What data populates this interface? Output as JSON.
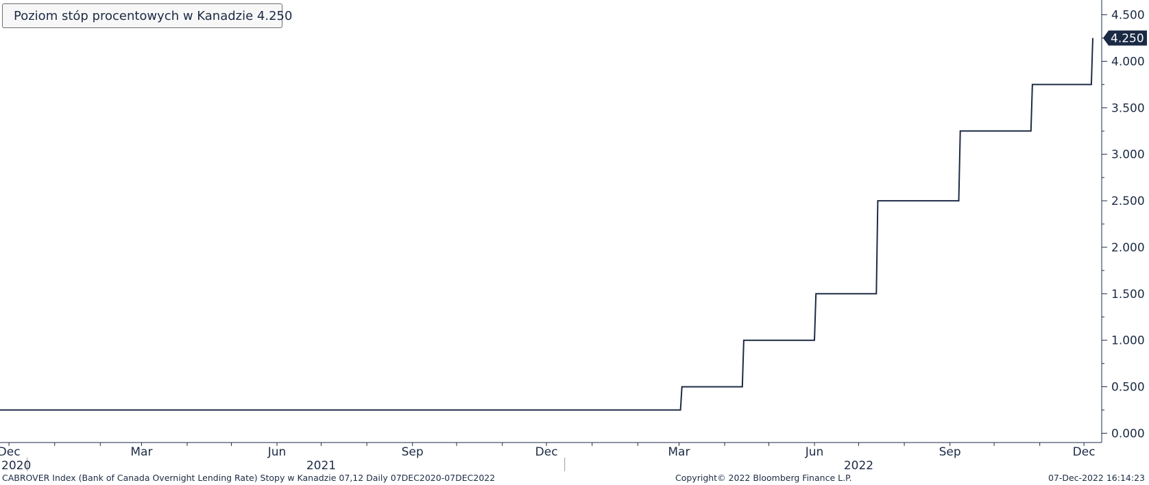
{
  "chart_data": {
    "type": "line",
    "line_shape": "step",
    "series": [
      {
        "name": "Poziom stóp procentowych w Kanadzie",
        "last_value": "4.250",
        "color": "#1b2a44",
        "points": [
          {
            "x": "2020-12-07",
            "y": 0.25
          },
          {
            "x": "2022-03-02",
            "y": 0.25
          },
          {
            "x": "2022-03-03",
            "y": 0.5
          },
          {
            "x": "2022-04-13",
            "y": 0.5
          },
          {
            "x": "2022-04-14",
            "y": 1.0
          },
          {
            "x": "2022-06-01",
            "y": 1.0
          },
          {
            "x": "2022-06-02",
            "y": 1.5
          },
          {
            "x": "2022-07-13",
            "y": 1.5
          },
          {
            "x": "2022-07-14",
            "y": 2.5
          },
          {
            "x": "2022-09-07",
            "y": 2.5
          },
          {
            "x": "2022-09-08",
            "y": 3.25
          },
          {
            "x": "2022-10-26",
            "y": 3.25
          },
          {
            "x": "2022-10-27",
            "y": 3.75
          },
          {
            "x": "2022-12-06",
            "y": 3.75
          },
          {
            "x": "2022-12-07",
            "y": 4.25
          }
        ]
      }
    ],
    "xlim": [
      "2020-12-07",
      "2022-12-07"
    ],
    "ylim": [
      -0.1,
      4.6
    ],
    "y_ticks": [
      "0.000",
      "0.500",
      "1.000",
      "1.500",
      "2.000",
      "2.500",
      "3.000",
      "3.500",
      "4.000",
      "4.500"
    ],
    "x_ticks": [
      {
        "label": "Dec",
        "date": "2020-12-01"
      },
      {
        "label": "Mar",
        "date": "2021-03-01"
      },
      {
        "label": "Jun",
        "date": "2021-06-01"
      },
      {
        "label": "Sep",
        "date": "2021-09-01"
      },
      {
        "label": "Dec",
        "date": "2021-12-01"
      },
      {
        "label": "Mar",
        "date": "2022-03-01"
      },
      {
        "label": "Jun",
        "date": "2022-06-01"
      },
      {
        "label": "Sep",
        "date": "2022-09-01"
      },
      {
        "label": "Dec",
        "date": "2022-12-01"
      }
    ],
    "year_labels": [
      {
        "label": "2020",
        "date": "2020-12-07"
      },
      {
        "label": "2021",
        "date": "2021-07-01"
      },
      {
        "label": "2022",
        "date": "2022-07-01"
      }
    ],
    "year_separators": [
      "2021-01-01",
      "2022-01-01"
    ],
    "y_axis_side": "right",
    "grid": false,
    "legend_position": "top-left"
  },
  "footer": {
    "left": "CABROVER Index (Bank of Canada Overnight Lending Rate) Stopy w Kanadzie 07,12  Daily 07DEC2020-07DEC2022",
    "middle": "Copyright© 2022 Bloomberg Finance L.P.",
    "right": "07-Dec-2022 16:14:23"
  }
}
